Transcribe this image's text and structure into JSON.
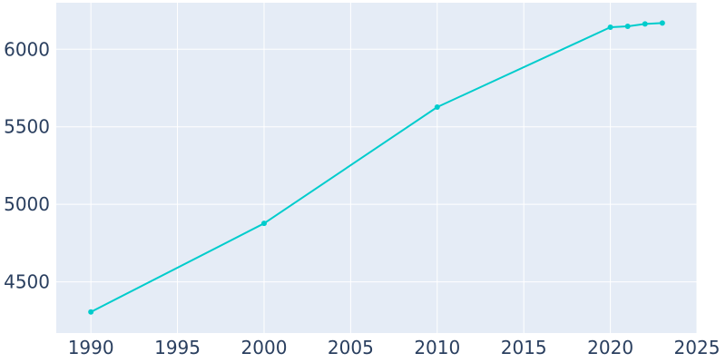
{
  "chart_data": {
    "type": "line",
    "title": "",
    "xlabel": "",
    "ylabel": "",
    "xlim": [
      1988,
      2025
    ],
    "ylim": [
      4170,
      6300
    ],
    "xticks": [
      1990,
      1995,
      2000,
      2005,
      2010,
      2015,
      2020,
      2025
    ],
    "yticks": [
      4500,
      5000,
      5500,
      6000
    ],
    "grid": true,
    "series": [
      {
        "color": "#00cccc",
        "x": [
          1990,
          2000,
          2010,
          2020,
          2021,
          2022,
          2023
        ],
        "y": [
          4306,
          4877,
          5627,
          6142,
          6148,
          6163,
          6169
        ]
      }
    ],
    "colors": {
      "plot_background": "#e5ecf6",
      "grid": "#ffffff",
      "tick_text": "#2a3f5f"
    }
  }
}
